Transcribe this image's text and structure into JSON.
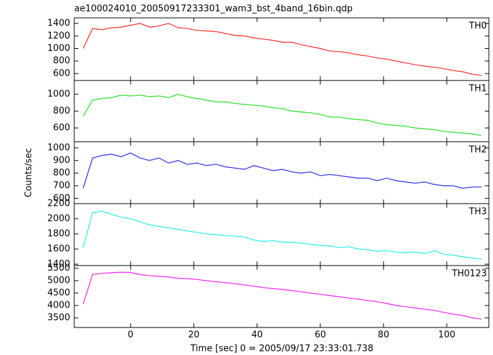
{
  "chart_data": [
    {
      "type": "line",
      "title": "ae100024010_20050917233301_wam3_bst_4band_16bin.qdp",
      "x": [
        -15,
        -12,
        -9,
        -6,
        -3,
        0,
        3,
        6,
        9,
        12,
        15,
        18,
        21,
        24,
        27,
        30,
        33,
        36,
        39,
        42,
        45,
        48,
        51,
        54,
        57,
        60,
        63,
        66,
        69,
        72,
        75,
        78,
        81,
        84,
        87,
        90,
        93,
        96,
        99,
        102,
        105,
        108,
        111
      ],
      "series": [
        {
          "name": "TH0",
          "color": "#ff2a2a",
          "values": [
            1000,
            1320,
            1300,
            1330,
            1340,
            1370,
            1400,
            1340,
            1360,
            1400,
            1330,
            1320,
            1290,
            1280,
            1270,
            1240,
            1210,
            1200,
            1170,
            1150,
            1130,
            1100,
            1100,
            1060,
            1030,
            1000,
            960,
            950,
            930,
            900,
            880,
            850,
            830,
            800,
            770,
            740,
            720,
            700,
            680,
            650,
            630,
            590,
            570
          ]
        }
      ],
      "xlim": [
        -17.8,
        113.3
      ],
      "ylim": [
        490,
        1488
      ],
      "yticks": [
        600,
        800,
        1000,
        1200,
        1400
      ]
    },
    {
      "type": "line",
      "x": [
        -15,
        -12,
        -9,
        -6,
        -3,
        0,
        3,
        6,
        9,
        12,
        15,
        18,
        21,
        24,
        27,
        30,
        33,
        36,
        39,
        42,
        45,
        48,
        51,
        54,
        57,
        60,
        63,
        66,
        69,
        72,
        75,
        78,
        81,
        84,
        87,
        90,
        93,
        96,
        99,
        102,
        105,
        108,
        111
      ],
      "series": [
        {
          "name": "TH1",
          "color": "#22dd22",
          "values": [
            740,
            930,
            950,
            960,
            990,
            980,
            990,
            970,
            980,
            960,
            1000,
            970,
            950,
            930,
            910,
            910,
            890,
            880,
            870,
            860,
            840,
            830,
            800,
            790,
            780,
            760,
            730,
            730,
            710,
            700,
            690,
            660,
            640,
            630,
            620,
            600,
            590,
            580,
            560,
            550,
            540,
            530,
            510
          ]
        }
      ],
      "xlim": [
        -17.8,
        113.3
      ],
      "ylim": [
        437,
        1163
      ],
      "yticks": [
        600,
        800,
        1000
      ]
    },
    {
      "type": "line",
      "ylabel": "Counts/sec",
      "x": [
        -15,
        -12,
        -9,
        -6,
        -3,
        0,
        3,
        6,
        9,
        12,
        15,
        18,
        21,
        24,
        27,
        30,
        33,
        36,
        39,
        42,
        45,
        48,
        51,
        54,
        57,
        60,
        63,
        66,
        69,
        72,
        75,
        78,
        81,
        84,
        87,
        90,
        93,
        96,
        99,
        102,
        105,
        108,
        111
      ],
      "series": [
        {
          "name": "TH2",
          "color": "#2a2aee",
          "values": [
            680,
            920,
            940,
            950,
            930,
            960,
            920,
            900,
            920,
            880,
            900,
            870,
            880,
            860,
            870,
            850,
            840,
            830,
            860,
            840,
            820,
            830,
            810,
            800,
            810,
            780,
            790,
            780,
            770,
            760,
            760,
            740,
            760,
            740,
            730,
            720,
            730,
            710,
            700,
            700,
            680,
            690,
            690
          ]
        }
      ],
      "xlim": [
        -17.8,
        113.3
      ],
      "ylim": [
        558,
        1049
      ],
      "yticks": [
        600,
        700,
        800,
        900,
        1000
      ]
    },
    {
      "type": "line",
      "x": [
        -15,
        -12,
        -9,
        -6,
        -3,
        0,
        3,
        6,
        9,
        12,
        15,
        18,
        21,
        24,
        27,
        30,
        33,
        36,
        39,
        42,
        45,
        48,
        51,
        54,
        57,
        60,
        63,
        66,
        69,
        72,
        75,
        78,
        81,
        84,
        87,
        90,
        93,
        96,
        99,
        102,
        105,
        108,
        111
      ],
      "series": [
        {
          "name": "TH3",
          "color": "#22eeee",
          "values": [
            1620,
            2080,
            2100,
            2060,
            2020,
            2000,
            1960,
            1920,
            1900,
            1880,
            1860,
            1840,
            1820,
            1800,
            1790,
            1780,
            1770,
            1760,
            1720,
            1700,
            1710,
            1690,
            1690,
            1680,
            1660,
            1650,
            1640,
            1620,
            1630,
            1600,
            1590,
            1570,
            1580,
            1560,
            1550,
            1560,
            1540,
            1580,
            1530,
            1520,
            1500,
            1480,
            1470
          ]
        }
      ],
      "xlim": [
        -17.8,
        113.3
      ],
      "ylim": [
        1382,
        2200
      ],
      "yticks": [
        1400,
        1600,
        1800,
        2000,
        2200
      ]
    },
    {
      "type": "line",
      "xlabel": "Time [sec] 0 = 2005/09/17 23:33:01.738",
      "x": [
        -15,
        -12,
        -9,
        -6,
        -3,
        0,
        3,
        6,
        9,
        12,
        15,
        18,
        21,
        24,
        27,
        30,
        33,
        36,
        39,
        42,
        45,
        48,
        51,
        54,
        57,
        60,
        63,
        66,
        69,
        72,
        75,
        78,
        81,
        84,
        87,
        90,
        93,
        96,
        99,
        102,
        105,
        108,
        111
      ],
      "series": [
        {
          "name": "TH0123",
          "color": "#ee22ee",
          "values": [
            4050,
            5250,
            5300,
            5320,
            5340,
            5330,
            5250,
            5200,
            5180,
            5150,
            5100,
            5080,
            5050,
            5000,
            4960,
            4920,
            4880,
            4830,
            4780,
            4720,
            4680,
            4650,
            4600,
            4550,
            4500,
            4450,
            4400,
            4350,
            4300,
            4250,
            4200,
            4150,
            4080,
            4000,
            3950,
            3900,
            3850,
            3800,
            3720,
            3650,
            3600,
            3500,
            3450
          ]
        }
      ],
      "xlim": [
        -17.8,
        113.3
      ],
      "ylim": [
        3111,
        5611
      ],
      "yticks": [
        3500,
        4000,
        4500,
        5000,
        5500
      ],
      "xticks": [
        0,
        20,
        40,
        60,
        80,
        100
      ]
    }
  ]
}
